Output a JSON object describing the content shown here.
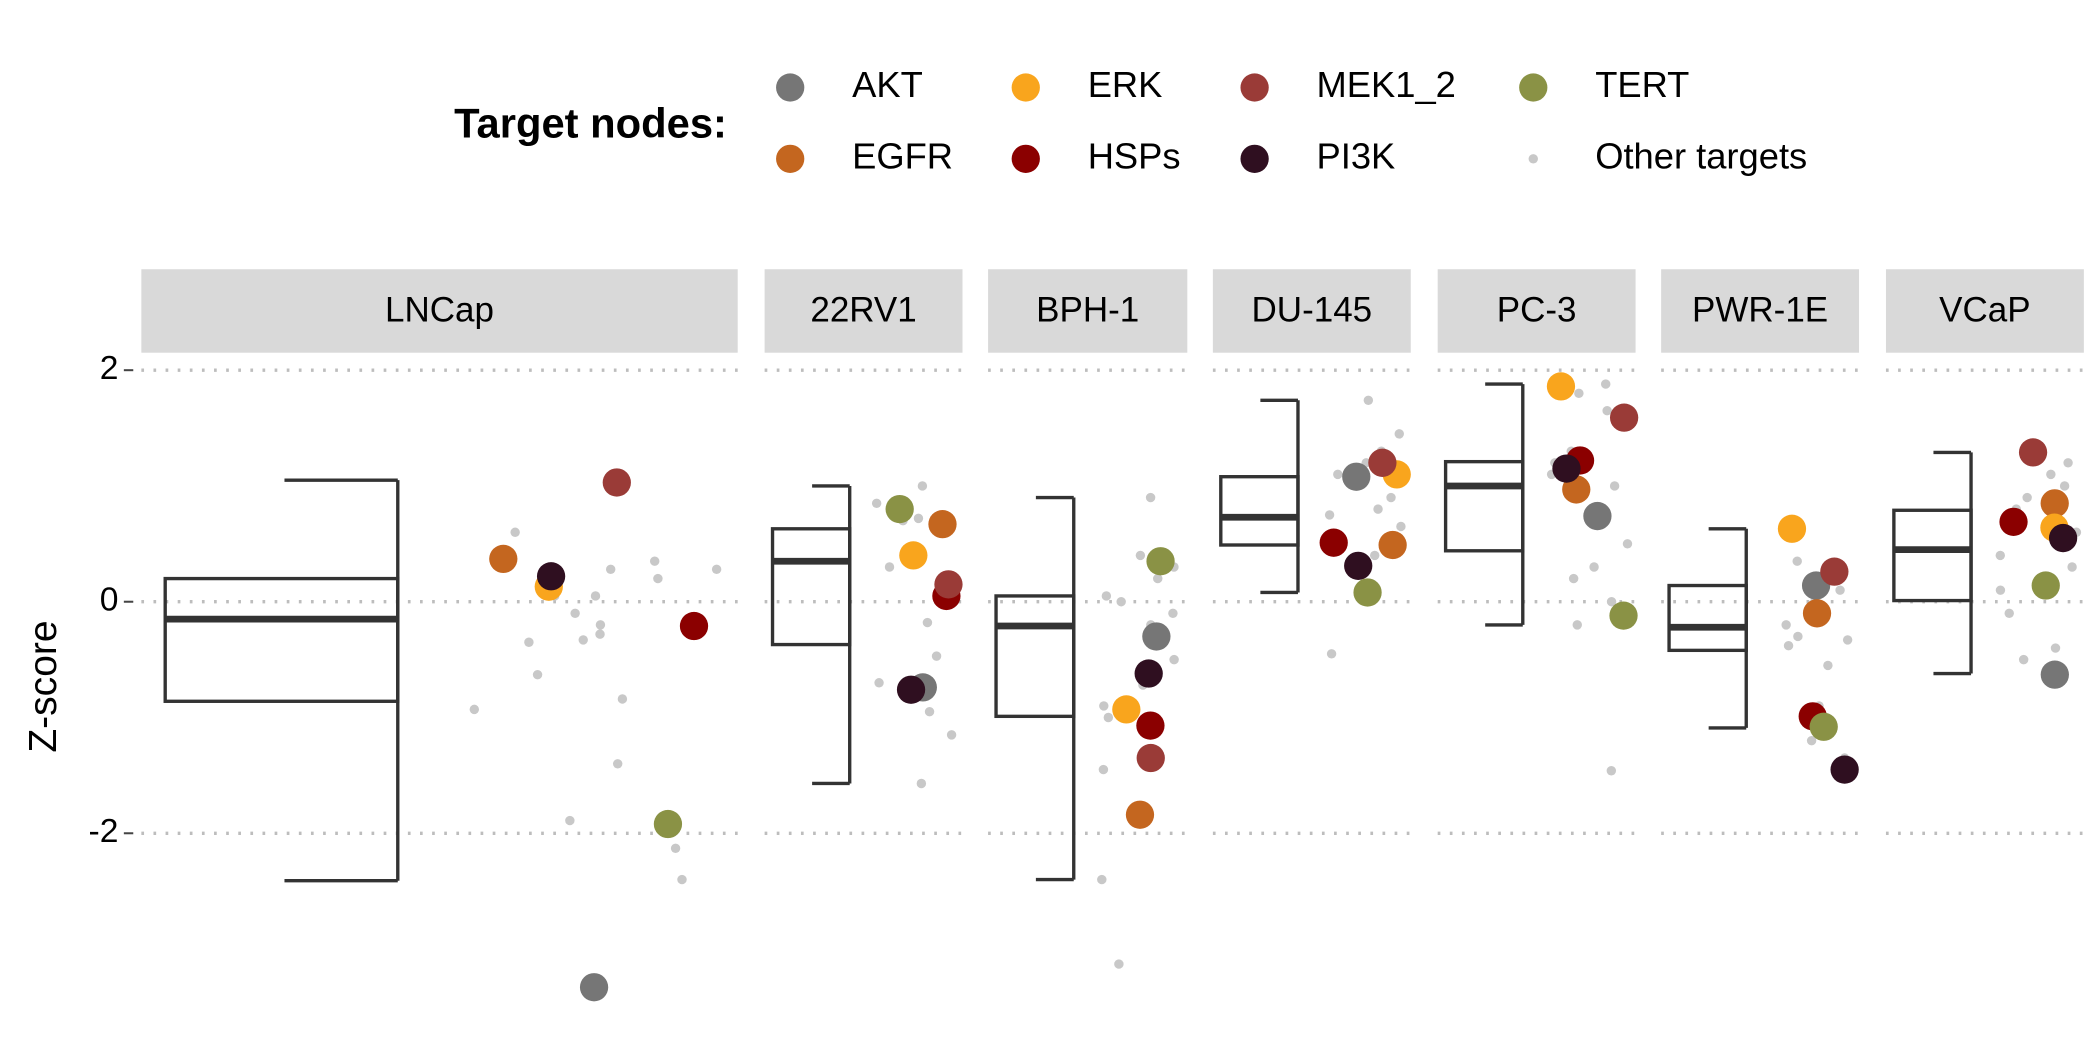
{
  "chart_data": {
    "type": "box",
    "legend_title": "Target nodes:",
    "y_label": "Z-score",
    "ylim": [
      -3.5,
      2.2
    ],
    "yticks": [
      -2,
      0,
      2
    ],
    "grid": true,
    "legend_position": "top",
    "panels": [
      {
        "name": "LNCap",
        "box": {
          "low": -2.41,
          "q1": -0.86,
          "median": -0.15,
          "q3": 0.2,
          "high": 1.05
        }
      },
      {
        "name": "22RV1",
        "box": {
          "low": -1.57,
          "q1": -0.37,
          "median": 0.35,
          "q3": 0.63,
          "high": 1.0
        }
      },
      {
        "name": "BPH-1",
        "box": {
          "low": -2.4,
          "q1": -0.99,
          "median": -0.21,
          "q3": 0.05,
          "high": 0.9
        }
      },
      {
        "name": "DU-145",
        "box": {
          "low": 0.08,
          "q1": 0.49,
          "median": 0.73,
          "q3": 1.08,
          "high": 1.74
        }
      },
      {
        "name": "PC-3",
        "box": {
          "low": -0.2,
          "q1": 0.44,
          "median": 1.0,
          "q3": 1.21,
          "high": 1.88
        }
      },
      {
        "name": "PWR-1E",
        "box": {
          "low": -1.09,
          "q1": -0.42,
          "median": -0.22,
          "q3": 0.14,
          "high": 0.63
        }
      },
      {
        "name": "VCaP",
        "box": {
          "low": -0.62,
          "q1": 0.01,
          "median": 0.45,
          "q3": 0.79,
          "high": 1.29
        }
      }
    ],
    "series": [
      {
        "name": "AKT",
        "color": "#767676",
        "values": [
          -3.33,
          -0.74,
          -0.3,
          1.08,
          0.74,
          0.14,
          -0.63
        ]
      },
      {
        "name": "EGFR",
        "color": "#c4661f",
        "values": [
          0.37,
          0.67,
          -1.84,
          0.49,
          0.97,
          -0.1,
          0.85
        ]
      },
      {
        "name": "ERK",
        "color": "#f9a51d",
        "values": [
          0.13,
          0.4,
          -0.93,
          1.1,
          1.86,
          0.63,
          0.64
        ]
      },
      {
        "name": "HSPs",
        "color": "#8b0000",
        "values": [
          -0.21,
          0.05,
          -1.07,
          0.51,
          1.22,
          -0.99,
          0.69
        ]
      },
      {
        "name": "MEK1_2",
        "color": "#9a3b37",
        "values": [
          1.03,
          0.15,
          -1.35,
          1.2,
          1.59,
          0.26,
          1.29
        ]
      },
      {
        "name": "PI3K",
        "color": "#2f0f20",
        "values": [
          0.22,
          -0.76,
          -0.62,
          0.31,
          1.15,
          -1.45,
          0.55
        ]
      },
      {
        "name": "TERT",
        "color": "#8a9245",
        "values": [
          -1.92,
          0.8,
          0.35,
          0.08,
          -0.12,
          -1.08,
          0.14
        ]
      },
      {
        "name": "Other targets",
        "color": "#c8c8c8",
        "values": [
          [
            0.6,
            0.35,
            0.28,
            -0.33,
            -0.63,
            -2.13,
            0.2,
            0.05,
            -0.2,
            -0.28,
            -0.93,
            -1.4,
            -0.84,
            -1.89,
            -2.4,
            0.05,
            -0.1,
            -0.35,
            0.28
          ],
          [
            1.0,
            0.85,
            0.7,
            0.65,
            0.3,
            0.2,
            -0.18,
            -0.47,
            -0.7,
            -0.95,
            -1.15,
            -1.57,
            0.72
          ],
          [
            0.9,
            0.4,
            0.3,
            0.2,
            0.05,
            0.0,
            -0.1,
            -0.2,
            -0.5,
            -0.9,
            -1.0,
            -1.45,
            -2.4,
            -3.13,
            -0.72
          ],
          [
            1.74,
            1.45,
            1.3,
            1.2,
            1.0,
            0.9,
            0.8,
            0.75,
            0.65,
            0.55,
            0.4,
            -0.45,
            1.1
          ],
          [
            1.88,
            1.8,
            1.65,
            1.3,
            1.1,
            1.0,
            0.5,
            0.3,
            0.2,
            0.0,
            -0.2,
            -1.46,
            1.2
          ],
          [
            0.35,
            0.1,
            -0.2,
            -0.3,
            -0.33,
            -0.38,
            -0.55,
            -0.9,
            -1.2,
            -1.35,
            -1.49,
            0.0
          ],
          [
            1.2,
            1.1,
            1.0,
            0.8,
            0.6,
            0.4,
            0.3,
            0.1,
            -0.1,
            -0.4,
            -0.5,
            0.9
          ]
        ]
      }
    ]
  }
}
